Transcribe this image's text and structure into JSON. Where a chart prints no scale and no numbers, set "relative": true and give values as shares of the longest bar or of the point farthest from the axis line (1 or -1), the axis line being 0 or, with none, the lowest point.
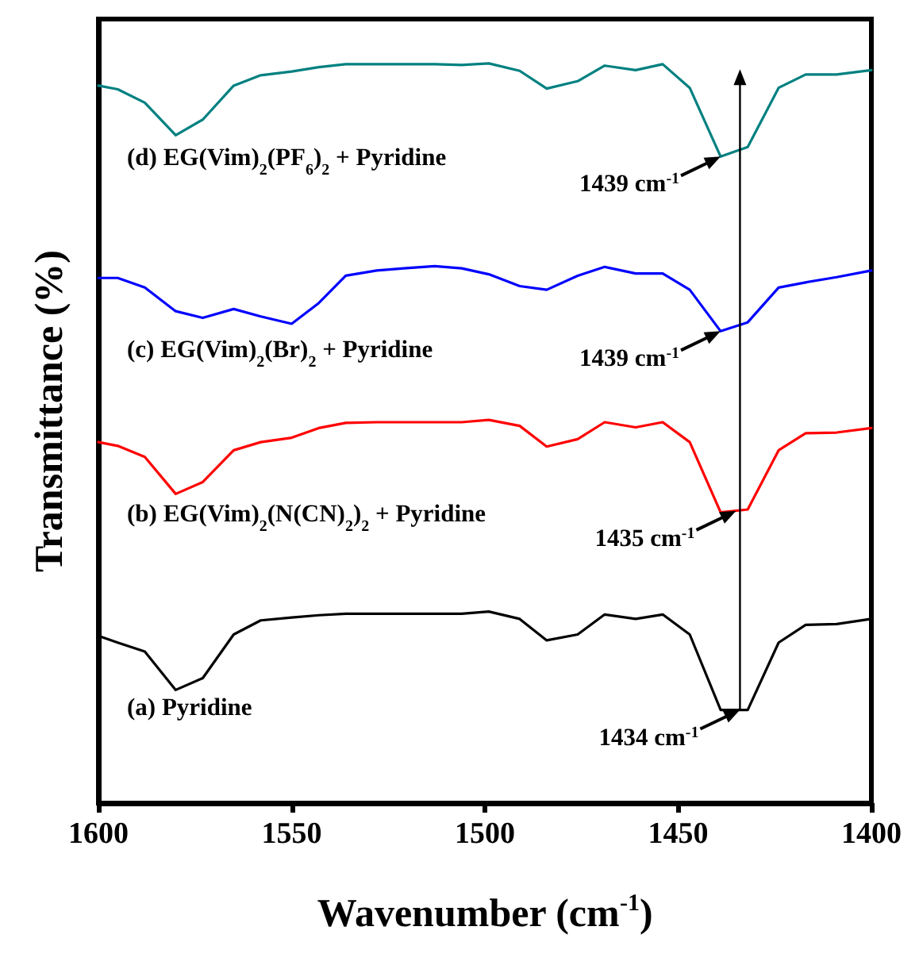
{
  "chart_data": {
    "type": "line",
    "relative": true,
    "xlabel": "Wavenumber (cm$^{-1}$)",
    "ylabel": "Transmittance (%)",
    "x": [
      1600,
      1595,
      1588,
      1580,
      1573,
      1565,
      1558,
      1550,
      1543,
      1536,
      1528,
      1521,
      1513,
      1506,
      1499,
      1491,
      1484,
      1476,
      1469,
      1461,
      1454,
      1447,
      1439,
      1432,
      1424,
      1417,
      1409,
      1400
    ],
    "xlim": [
      1600,
      1400
    ],
    "xticks": [
      1600,
      1550,
      1500,
      1450,
      1400
    ],
    "grid": false,
    "legend": false,
    "marker": "none",
    "line_style": "solid",
    "series": [
      {
        "name": "(d) EG(Vim)$_{2}$(PF$_{6}$)$_{2}$ + Pyridine",
        "color": "#008080",
        "values": [
          0.97,
          0.965,
          0.947,
          0.903,
          0.924,
          0.97,
          0.984,
          0.989,
          0.995,
          0.999,
          0.999,
          0.999,
          0.999,
          0.998,
          1.0,
          0.99,
          0.966,
          0.976,
          0.997,
          0.991,
          0.999,
          0.967,
          0.874,
          0.887,
          0.967,
          0.985,
          0.985,
          0.991
        ]
      },
      {
        "name": "(c) EG(Vim)$_{2}$(Br)$_{2}$ + Pyridine",
        "color": "#0000ff",
        "values": [
          0.71,
          0.71,
          0.697,
          0.665,
          0.656,
          0.668,
          0.658,
          0.648,
          0.676,
          0.713,
          0.72,
          0.723,
          0.726,
          0.723,
          0.715,
          0.699,
          0.694,
          0.713,
          0.725,
          0.716,
          0.716,
          0.694,
          0.638,
          0.65,
          0.697,
          0.704,
          0.711,
          0.72
        ]
      },
      {
        "name": "(b) EG(Vim)$_{2}$(N(CN)$_{2}$)$_{2}$ + Pyridine",
        "color": "#ff0000",
        "values": [
          0.488,
          0.483,
          0.468,
          0.418,
          0.434,
          0.477,
          0.488,
          0.494,
          0.507,
          0.514,
          0.515,
          0.515,
          0.515,
          0.515,
          0.518,
          0.51,
          0.482,
          0.492,
          0.515,
          0.508,
          0.515,
          0.488,
          0.393,
          0.397,
          0.477,
          0.5,
          0.501,
          0.507
        ]
      },
      {
        "name": "(a) Pyridine",
        "color": "#000000",
        "values": [
          0.226,
          0.217,
          0.205,
          0.153,
          0.169,
          0.228,
          0.247,
          0.251,
          0.254,
          0.256,
          0.256,
          0.256,
          0.256,
          0.256,
          0.259,
          0.249,
          0.22,
          0.228,
          0.255,
          0.249,
          0.255,
          0.228,
          0.126,
          0.126,
          0.217,
          0.241,
          0.242,
          0.249
        ]
      }
    ],
    "annotations": [
      {
        "text": "1439 cm$^{-1}$",
        "x": 1439,
        "y": 0.874
      },
      {
        "text": "1439 cm$^{-1}$",
        "x": 1439,
        "y": 0.638
      },
      {
        "text": "1435 cm$^{-1}$",
        "x": 1435,
        "y": 0.395
      },
      {
        "text": "1434 cm$^{-1}$",
        "x": 1434,
        "y": 0.126
      }
    ]
  }
}
